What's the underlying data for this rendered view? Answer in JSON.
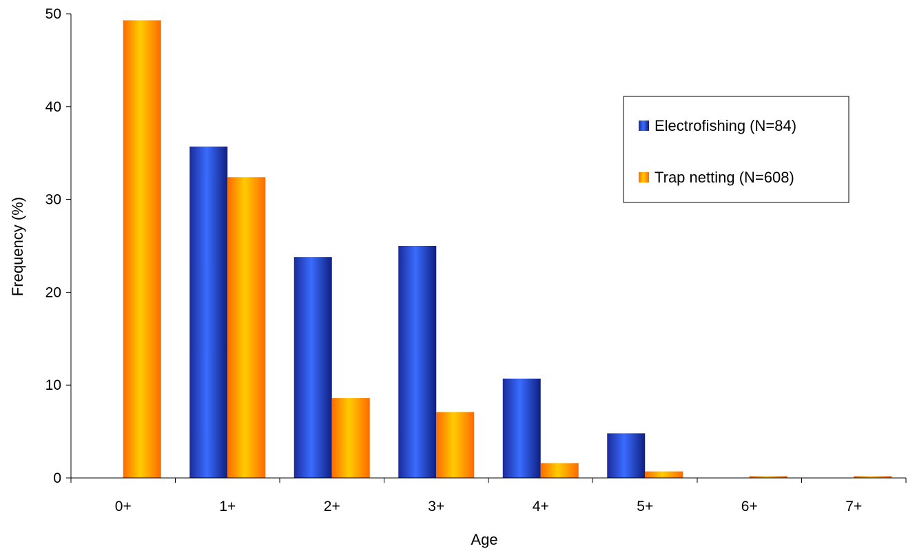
{
  "chart_data": {
    "type": "bar",
    "title": "",
    "xlabel": "Age",
    "ylabel": "Frequency (%)",
    "categories": [
      "0+",
      "1+",
      "2+",
      "3+",
      "4+",
      "5+",
      "6+",
      "7+"
    ],
    "ylim": [
      0,
      50
    ],
    "yticks": [
      0,
      10,
      20,
      30,
      40,
      50
    ],
    "grid": false,
    "legend_position": "right",
    "series": [
      {
        "name": "Electrofishing (N=84)",
        "color": "#2a4fe0",
        "values": [
          0,
          35.7,
          23.8,
          25.0,
          10.7,
          4.8,
          0,
          0
        ]
      },
      {
        "name": "Trap netting (N=608)",
        "color": "#ff9900",
        "values": [
          49.3,
          32.4,
          8.6,
          7.1,
          1.6,
          0.7,
          0.2,
          0.2
        ]
      }
    ]
  }
}
